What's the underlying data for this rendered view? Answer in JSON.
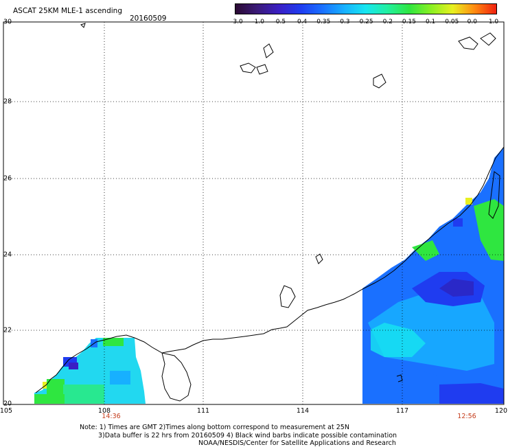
{
  "header": {
    "title": "ASCAT 25KM MLE-1 ascending",
    "date": "20160509"
  },
  "colorbar": {
    "labels": [
      "-3.0",
      "-1.0",
      "-0.5",
      "-0.4",
      "-0.35",
      "-0.3",
      "-0.25",
      "-0.2",
      "-0.15",
      "-0.1",
      "-0.05",
      "0.0",
      "1.0"
    ],
    "colors": [
      "#2b0a33",
      "#3a1a78",
      "#3a1fc4",
      "#1f3cf0",
      "#1a70ff",
      "#17b0ff",
      "#17e6f0",
      "#22f0a0",
      "#2fe640",
      "#8af022",
      "#e8f020",
      "#ff8a10",
      "#f02010"
    ]
  },
  "axes": {
    "lat_labels": [
      "30",
      "28",
      "26",
      "24",
      "22",
      "20"
    ],
    "lon_labels": [
      "105",
      "108",
      "111",
      "114",
      "117",
      "120"
    ],
    "pass_times": [
      "14:36",
      "12:56"
    ]
  },
  "footer": {
    "line1": "Note: 1) Times are GMT 2)Times along bottom correspond to measurement at 25N",
    "line2": "3)Data buffer is 22 hrs from 20160509 4) Black wind barbs indicate possible contamination",
    "line3": "NOAA/NESDIS/Center for Satellite Applications and Research"
  },
  "style": {
    "time_color": "#c43b1a",
    "grid_color": "#000000",
    "coastline_color": "#000000"
  }
}
